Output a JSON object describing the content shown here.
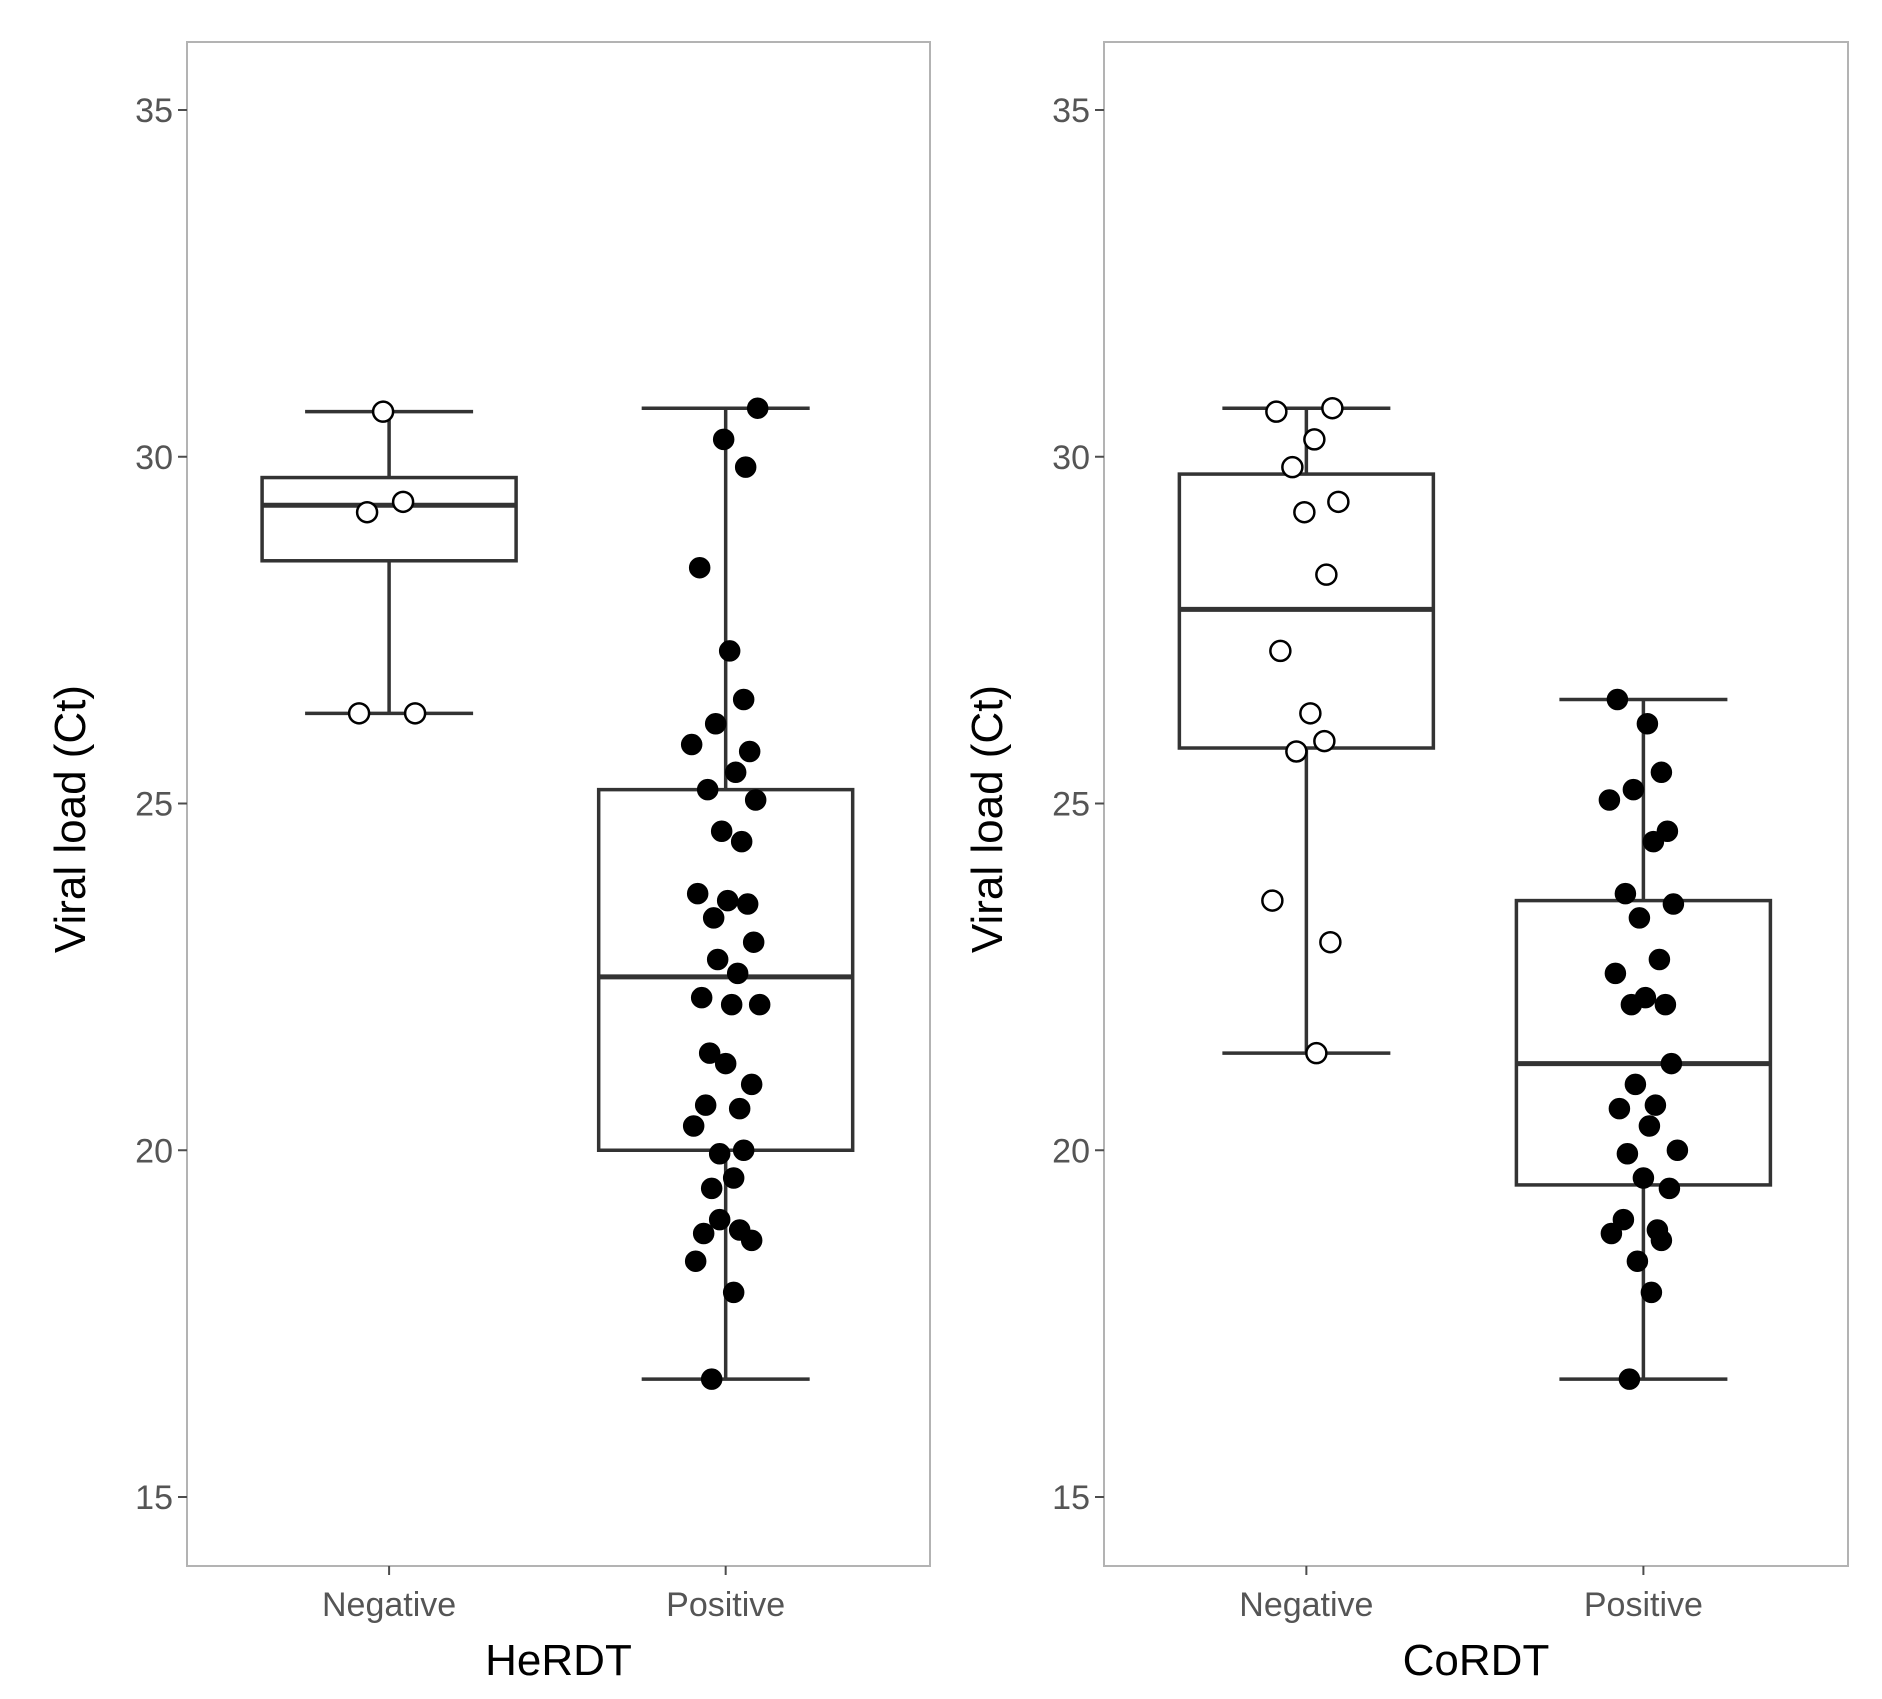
{
  "chart_data": [
    {
      "type": "boxplot",
      "panel": "HeRDT",
      "xlabel": "HeRDT",
      "ylabel": "Viral load (Ct)",
      "ylim": [
        14,
        36
      ],
      "yticks": [
        15,
        20,
        25,
        30,
        35
      ],
      "categories": [
        "Negative",
        "Positive"
      ],
      "groups": [
        {
          "name": "Negative",
          "marker": "open",
          "box": {
            "min": 26.3,
            "q1": 28.5,
            "median": 29.3,
            "q3": 29.7,
            "max": 30.65
          },
          "points": [
            30.65,
            29.35,
            29.2,
            26.3,
            26.3
          ]
        },
        {
          "name": "Positive",
          "marker": "filled",
          "box": {
            "min": 16.7,
            "q1": 20.0,
            "median": 22.5,
            "q3": 25.2,
            "max": 30.7
          },
          "points": [
            30.7,
            30.25,
            29.85,
            28.4,
            27.2,
            26.5,
            26.15,
            25.85,
            25.75,
            25.45,
            25.2,
            25.05,
            24.6,
            24.45,
            23.7,
            23.6,
            23.55,
            23.35,
            23.0,
            22.75,
            22.55,
            22.2,
            22.1,
            22.1,
            21.4,
            21.25,
            20.95,
            20.65,
            20.6,
            20.35,
            20.0,
            19.95,
            19.6,
            19.45,
            19.0,
            18.85,
            18.8,
            18.7,
            18.4,
            17.95,
            16.7
          ]
        }
      ]
    },
    {
      "type": "boxplot",
      "panel": "CoRDT",
      "xlabel": "CoRDT",
      "ylabel": "Viral load (Ct)",
      "ylim": [
        14,
        36
      ],
      "yticks": [
        15,
        20,
        25,
        30,
        35
      ],
      "categories": [
        "Negative",
        "Positive"
      ],
      "groups": [
        {
          "name": "Negative",
          "marker": "open",
          "box": {
            "min": 21.4,
            "q1": 25.8,
            "median": 27.8,
            "q3": 29.75,
            "max": 30.7
          },
          "points": [
            30.7,
            30.65,
            30.25,
            29.85,
            29.35,
            29.2,
            28.3,
            27.2,
            26.3,
            25.9,
            25.75,
            23.6,
            23.0,
            21.4
          ]
        },
        {
          "name": "Positive",
          "marker": "filled",
          "box": {
            "min": 16.7,
            "q1": 19.5,
            "median": 21.25,
            "q3": 23.6,
            "max": 26.5
          },
          "points": [
            26.5,
            26.15,
            25.45,
            25.2,
            25.05,
            24.6,
            24.45,
            23.7,
            23.55,
            23.35,
            22.75,
            22.55,
            22.2,
            22.1,
            22.1,
            21.25,
            20.95,
            20.65,
            20.6,
            20.35,
            20.0,
            19.95,
            19.6,
            19.45,
            19.0,
            18.85,
            18.8,
            18.7,
            18.4,
            17.95,
            16.7
          ]
        }
      ]
    }
  ]
}
